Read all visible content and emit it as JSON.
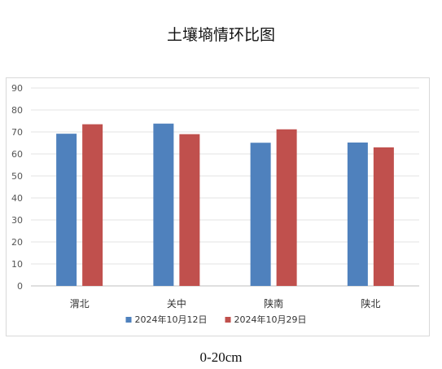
{
  "chart_data": {
    "type": "bar",
    "title": "土壤墒情环比图",
    "categories": [
      "渭北",
      "关中",
      "陕南",
      "陕北"
    ],
    "series": [
      {
        "name": "2024年10月12日",
        "color": "#4F81BD",
        "values": [
          69.2,
          73.8,
          65.1,
          65.2
        ]
      },
      {
        "name": "2024年10月29日",
        "color": "#C0504D",
        "values": [
          73.5,
          69.0,
          71.2,
          63.0
        ]
      }
    ],
    "ylim": [
      0,
      90
    ],
    "yticks": [
      0,
      10,
      20,
      30,
      40,
      50,
      60,
      70,
      80,
      90
    ],
    "grid": true,
    "legend_position": "bottom",
    "caption": "0-20cm"
  }
}
